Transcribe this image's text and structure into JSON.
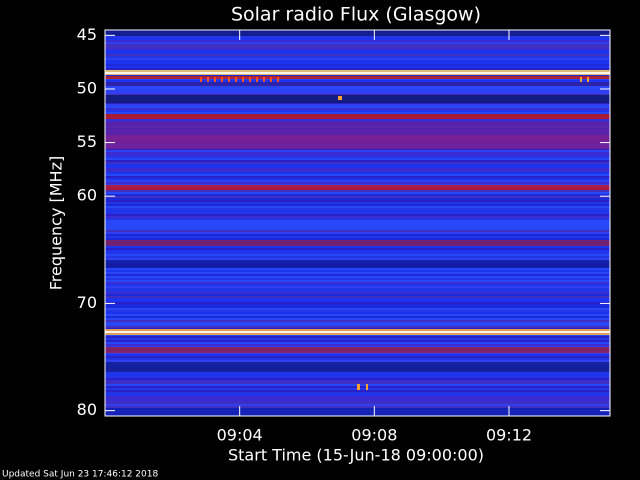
{
  "chart_data": {
    "type": "spectrogram",
    "title": "Solar radio Flux (Glasgow)",
    "y_label": "Frequency [MHz]",
    "x_label": "Start Time (15-Jun-18 09:00:00)",
    "footer": "Updated Sat Jun 23 17:46:12 2018",
    "ylim": [
      44.5,
      80.5
    ],
    "yticks": [
      45,
      50,
      55,
      60,
      70,
      80
    ],
    "xlim": [
      0,
      15
    ],
    "xticks": [
      {
        "value": 4,
        "label": "09:04"
      },
      {
        "value": 8,
        "label": "09:08"
      },
      {
        "value": 12,
        "label": "09:12"
      }
    ]
  }
}
